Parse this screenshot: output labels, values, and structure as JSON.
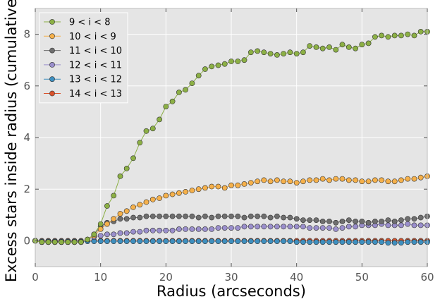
{
  "chart_data": {
    "type": "line",
    "title": "",
    "xlabel": "Radius (arcseconds)",
    "ylabel": "Excess stars inside radius (cumulative)",
    "xlim": [
      0,
      60
    ],
    "ylim": [
      -1,
      9
    ],
    "xticks": [
      "0",
      "10",
      "20",
      "30",
      "40",
      "50",
      "60"
    ],
    "yticks": [
      "0",
      "2",
      "4",
      "6",
      "8"
    ],
    "grid": true,
    "legend_position": "top-left",
    "x": [
      0,
      1,
      2,
      3,
      4,
      5,
      6,
      7,
      8,
      9,
      10,
      11,
      12,
      13,
      14,
      15,
      16,
      17,
      18,
      19,
      20,
      21,
      22,
      23,
      24,
      25,
      26,
      27,
      28,
      29,
      30,
      31,
      32,
      33,
      34,
      35,
      36,
      37,
      38,
      39,
      40,
      41,
      42,
      43,
      44,
      45,
      46,
      47,
      48,
      49,
      50,
      51,
      52,
      53,
      54,
      55,
      56,
      57,
      58,
      59,
      60
    ],
    "series": [
      {
        "name": "9 < i < 8",
        "color": "#8cb045",
        "values": [
          0,
          -0.05,
          -0.05,
          -0.05,
          -0.05,
          -0.05,
          -0.05,
          -0.05,
          0.05,
          0.25,
          0.65,
          1.35,
          1.75,
          2.5,
          2.8,
          3.2,
          3.8,
          4.25,
          4.35,
          4.7,
          5.2,
          5.4,
          5.75,
          5.85,
          6.1,
          6.4,
          6.65,
          6.75,
          6.8,
          6.85,
          6.95,
          6.95,
          7.0,
          7.3,
          7.35,
          7.3,
          7.25,
          7.2,
          7.25,
          7.3,
          7.25,
          7.3,
          7.55,
          7.5,
          7.45,
          7.5,
          7.4,
          7.6,
          7.5,
          7.45,
          7.6,
          7.65,
          7.9,
          7.95,
          7.9,
          7.95,
          7.95,
          8.0,
          7.95,
          8.1,
          8.1
        ]
      },
      {
        "name": "10 < i < 9",
        "color": "#f5b04a",
        "values": [
          0,
          -0.05,
          -0.05,
          -0.05,
          -0.05,
          -0.05,
          -0.05,
          -0.05,
          0.05,
          0.2,
          0.45,
          0.65,
          0.85,
          1.05,
          1.15,
          1.3,
          1.4,
          1.5,
          1.6,
          1.65,
          1.75,
          1.8,
          1.85,
          1.9,
          1.95,
          2.0,
          2.05,
          2.1,
          2.1,
          2.05,
          2.15,
          2.15,
          2.2,
          2.25,
          2.3,
          2.35,
          2.3,
          2.35,
          2.3,
          2.3,
          2.25,
          2.3,
          2.35,
          2.35,
          2.4,
          2.35,
          2.4,
          2.4,
          2.35,
          2.35,
          2.3,
          2.3,
          2.35,
          2.35,
          2.3,
          2.3,
          2.35,
          2.4,
          2.4,
          2.45,
          2.5
        ]
      },
      {
        "name": "11 < i < 10",
        "color": "#6e6e6e",
        "values": [
          0,
          -0.05,
          -0.05,
          -0.05,
          -0.05,
          -0.05,
          -0.05,
          -0.05,
          0.05,
          0.25,
          0.55,
          0.7,
          0.75,
          0.85,
          0.85,
          0.9,
          0.9,
          0.95,
          0.95,
          0.95,
          0.95,
          0.95,
          0.95,
          0.95,
          0.95,
          0.9,
          0.95,
          0.9,
          0.95,
          0.95,
          0.95,
          0.95,
          0.9,
          0.95,
          0.95,
          0.95,
          0.9,
          0.95,
          0.9,
          0.9,
          0.85,
          0.8,
          0.8,
          0.8,
          0.75,
          0.75,
          0.7,
          0.75,
          0.8,
          0.75,
          0.75,
          0.7,
          0.75,
          0.75,
          0.8,
          0.75,
          0.8,
          0.85,
          0.85,
          0.9,
          0.95
        ]
      },
      {
        "name": "12 < i < 11",
        "color": "#9a8fcc",
        "values": [
          0,
          -0.05,
          -0.05,
          -0.05,
          -0.05,
          -0.05,
          -0.05,
          -0.05,
          0.05,
          0.15,
          0.2,
          0.25,
          0.25,
          0.3,
          0.3,
          0.35,
          0.35,
          0.4,
          0.4,
          0.4,
          0.4,
          0.4,
          0.45,
          0.45,
          0.45,
          0.45,
          0.45,
          0.45,
          0.5,
          0.5,
          0.5,
          0.5,
          0.55,
          0.55,
          0.55,
          0.55,
          0.55,
          0.55,
          0.55,
          0.55,
          0.55,
          0.55,
          0.5,
          0.5,
          0.5,
          0.5,
          0.45,
          0.5,
          0.55,
          0.55,
          0.6,
          0.6,
          0.6,
          0.65,
          0.6,
          0.6,
          0.6,
          0.65,
          0.6,
          0.6,
          0.6
        ]
      },
      {
        "name": "13 < i < 12",
        "color": "#3e8fbf",
        "values": [
          0,
          -0.02,
          -0.02,
          -0.02,
          -0.02,
          -0.02,
          -0.02,
          -0.02,
          -0.02,
          -0.02,
          -0.02,
          -0.02,
          -0.02,
          -0.02,
          -0.02,
          -0.02,
          -0.02,
          -0.02,
          -0.02,
          -0.02,
          -0.02,
          -0.02,
          -0.02,
          -0.02,
          -0.02,
          -0.02,
          -0.02,
          -0.02,
          -0.02,
          -0.02,
          -0.02,
          -0.02,
          -0.02,
          -0.02,
          -0.02,
          -0.02,
          -0.02,
          -0.02,
          -0.02,
          -0.02,
          -0.05,
          -0.05,
          -0.05,
          -0.05,
          -0.05,
          -0.05,
          -0.05,
          -0.05,
          -0.05,
          -0.05,
          -0.05,
          -0.05,
          -0.05,
          -0.05,
          -0.08,
          -0.08,
          -0.08,
          -0.05,
          -0.05,
          -0.05,
          -0.05
        ]
      },
      {
        "name": "14 < i < 13",
        "color": "#d9532c",
        "values": [
          0,
          0,
          0,
          0,
          0,
          0,
          0,
          0,
          0,
          0,
          0,
          0,
          0,
          0,
          0,
          0,
          0,
          0,
          0,
          0,
          0,
          0,
          0,
          0,
          0,
          0,
          0,
          0,
          0,
          0,
          0,
          0,
          0,
          0,
          0,
          0,
          0,
          0,
          0,
          0,
          0,
          0,
          0,
          0,
          0,
          0,
          0,
          0,
          0,
          0,
          0,
          0,
          0,
          0,
          0,
          0,
          0,
          0,
          0,
          0,
          0
        ]
      }
    ]
  }
}
